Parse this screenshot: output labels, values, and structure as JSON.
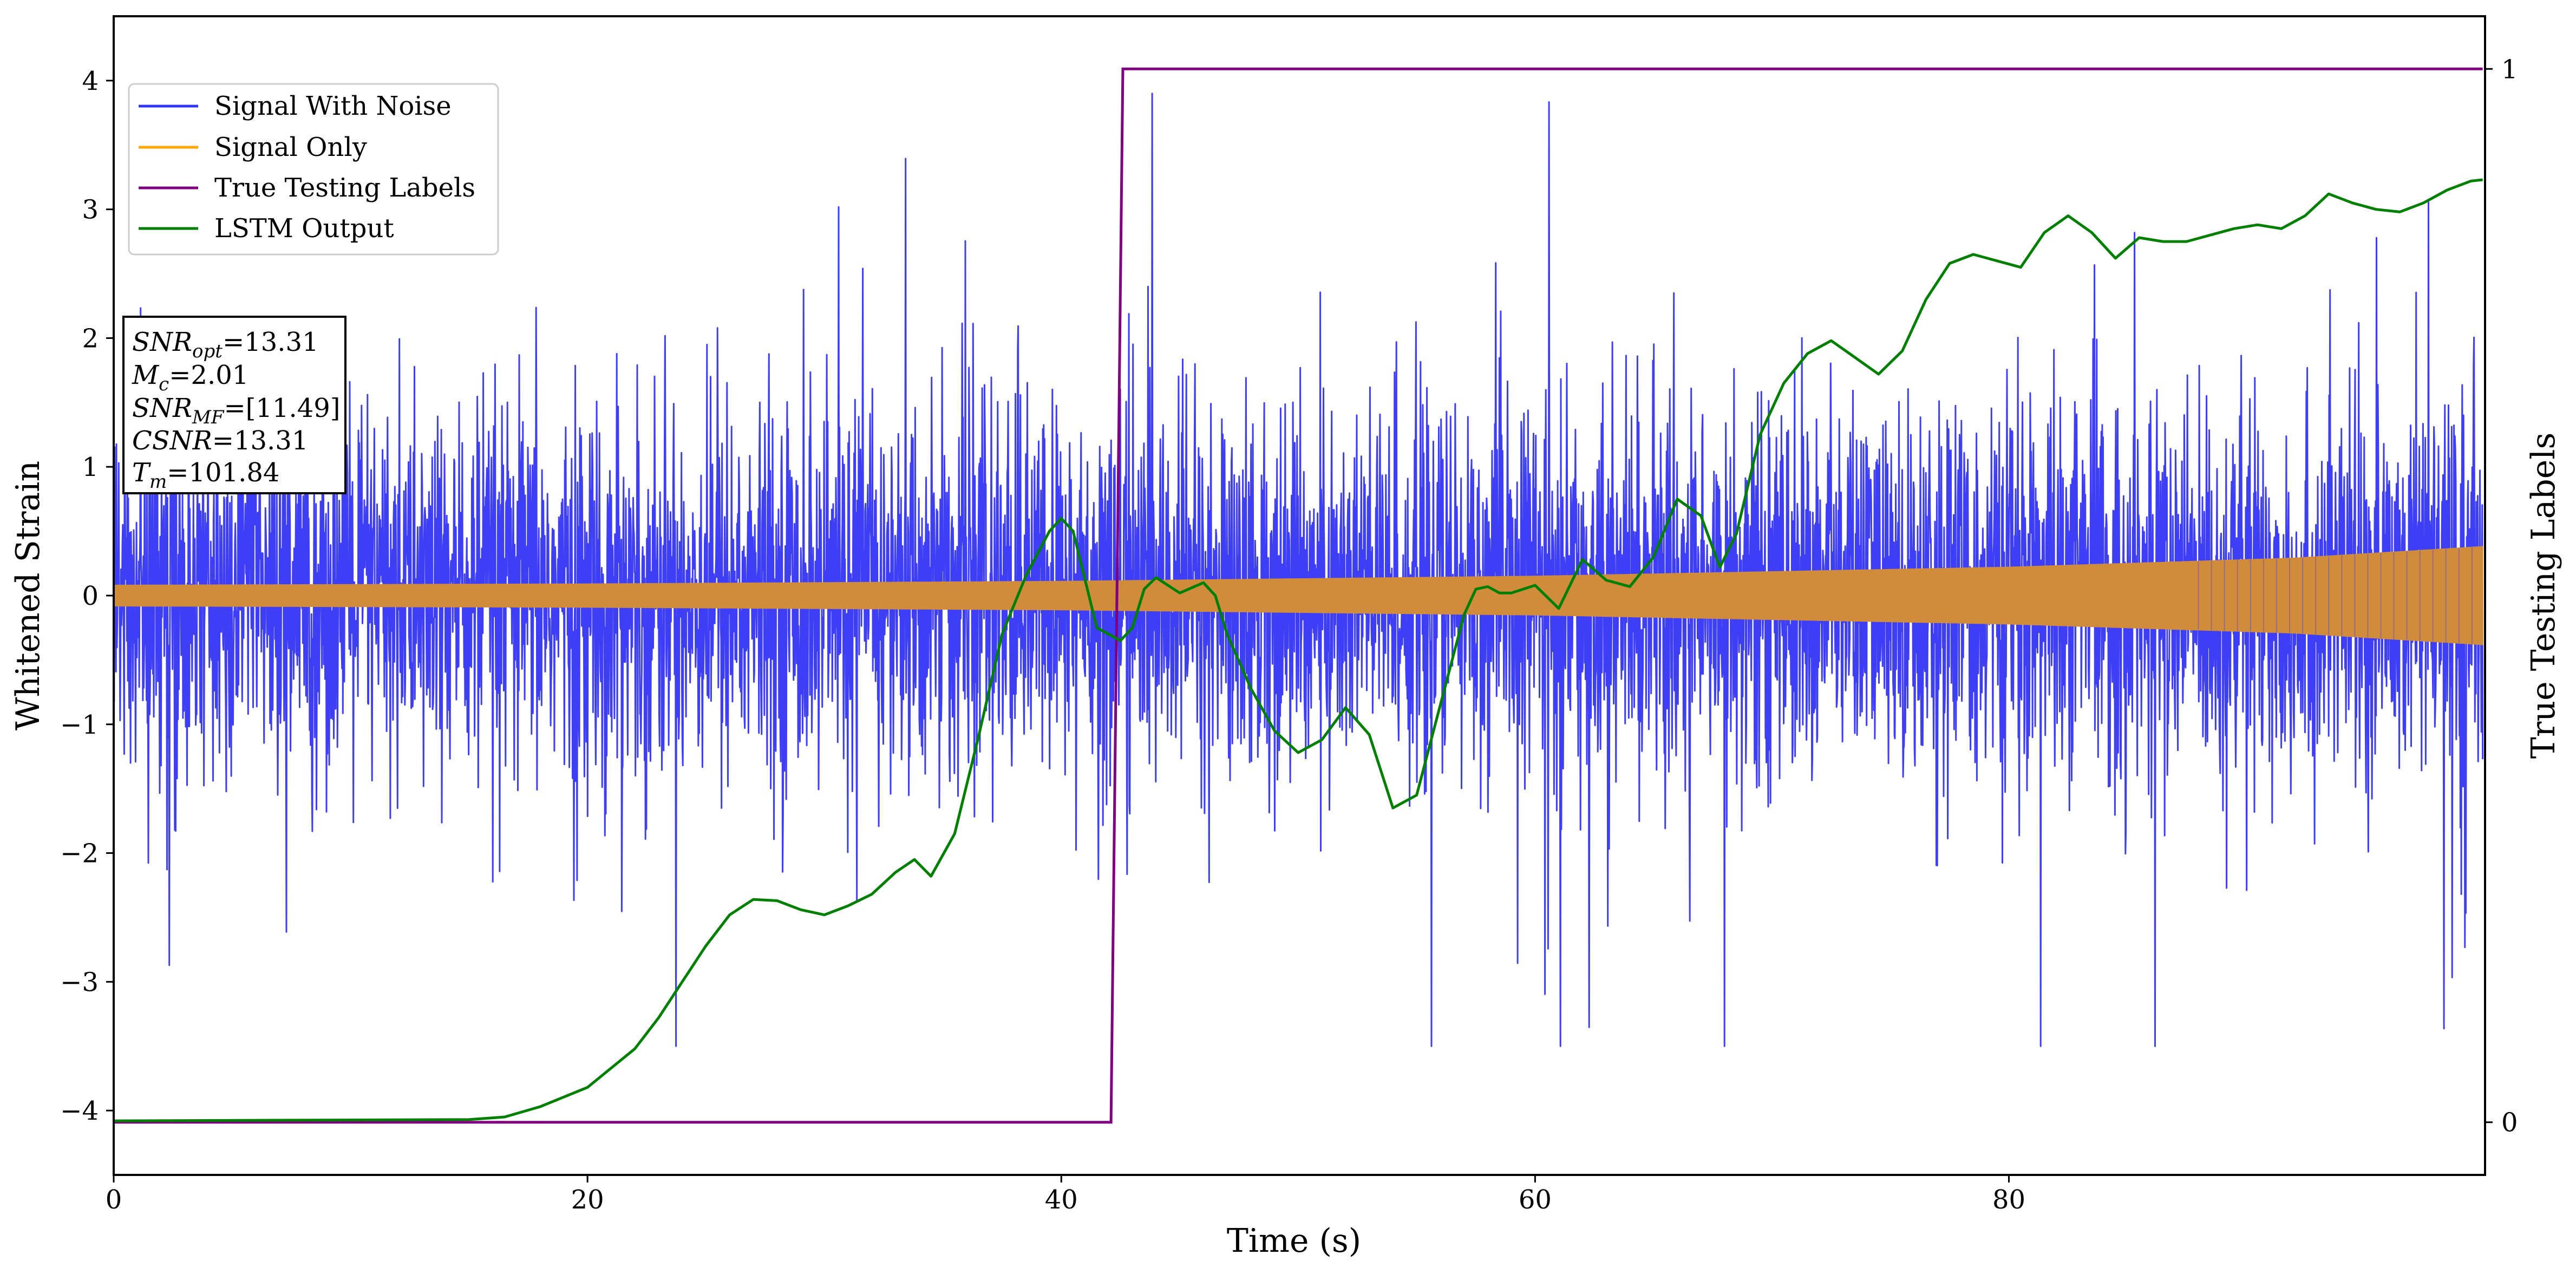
{
  "chart_data": {
    "type": "line",
    "xlabel": "Time (s)",
    "ylabel": "Whitened Strain",
    "y2label": "True Testing Labels",
    "xlim": [
      0,
      100.1
    ],
    "ylim": [
      -4.5,
      4.5
    ],
    "y2lim": [
      -0.05,
      1.05
    ],
    "xticks": [
      0,
      20,
      40,
      60,
      80
    ],
    "yticks": [
      -4,
      -3,
      -2,
      -1,
      0,
      1,
      2,
      3,
      4
    ],
    "y2ticks": [
      0,
      1
    ],
    "grid": false,
    "legend_position": "upper-left",
    "colors": {
      "signal_with_noise": "#3434f5",
      "signal_only": "#ffa500",
      "signal_overlap": "#d08c3b",
      "labels": "#800080",
      "lstm": "#008000"
    },
    "series": [
      {
        "name": "Signal With Noise",
        "kind": "noise_band",
        "axis": "left",
        "typical_amplitude": 1.15,
        "max_value": 4.05,
        "min_value": -3.55
      },
      {
        "name": "Signal Only",
        "kind": "chirp_envelope",
        "axis": "left",
        "envelope_x": [
          0,
          20,
          40,
          60,
          80,
          92,
          100
        ],
        "envelope_amplitude": [
          0.08,
          0.09,
          0.11,
          0.15,
          0.22,
          0.29,
          0.38
        ]
      },
      {
        "name": "True Testing Labels",
        "kind": "step",
        "axis": "right",
        "x": [
          0,
          42.1,
          42.6,
          100
        ],
        "y": [
          0,
          0,
          1,
          1
        ]
      },
      {
        "name": "LSTM Output",
        "kind": "line",
        "axis": "left",
        "x": [
          0,
          15,
          16.5,
          18,
          20,
          22,
          23,
          24,
          25,
          26,
          27,
          28,
          29,
          30,
          31,
          32,
          33,
          33.8,
          34.5,
          35.5,
          36.5,
          37.5,
          38.5,
          39.5,
          40,
          40.5,
          41.5,
          42.5,
          43,
          43.5,
          44,
          44.5,
          45,
          45.5,
          46,
          46.5,
          47,
          48,
          49,
          50,
          51,
          52,
          53,
          54,
          55,
          56,
          57,
          57.5,
          58,
          58.5,
          59,
          60,
          61,
          62,
          63,
          64,
          65,
          66,
          67,
          67.8,
          68.5,
          69.5,
          70.5,
          71.5,
          72.5,
          73.5,
          74.5,
          75.5,
          76.5,
          77.5,
          78.5,
          79.5,
          80.5,
          81.5,
          82.5,
          83.5,
          84.5,
          85.5,
          86.5,
          87.5,
          88.5,
          89.5,
          90.5,
          91.5,
          92.5,
          93.5,
          94.5,
          95.5,
          96.5,
          97.5,
          98.5,
          99.5,
          100
        ],
        "y": [
          -4.08,
          -4.07,
          -4.05,
          -3.97,
          -3.82,
          -3.52,
          -3.28,
          -3.0,
          -2.72,
          -2.48,
          -2.36,
          -2.37,
          -2.44,
          -2.48,
          -2.41,
          -2.32,
          -2.15,
          -2.05,
          -2.18,
          -1.85,
          -1.1,
          -0.3,
          0.15,
          0.5,
          0.6,
          0.5,
          -0.25,
          -0.35,
          -0.25,
          0.05,
          0.14,
          0.08,
          0.02,
          0.06,
          0.1,
          0.0,
          -0.3,
          -0.72,
          -1.05,
          -1.22,
          -1.12,
          -0.87,
          -1.08,
          -1.65,
          -1.55,
          -0.85,
          -0.15,
          0.05,
          0.07,
          0.02,
          0.02,
          0.08,
          -0.1,
          0.28,
          0.12,
          0.07,
          0.3,
          0.75,
          0.62,
          0.22,
          0.48,
          1.25,
          1.65,
          1.88,
          1.98,
          1.85,
          1.72,
          1.9,
          2.3,
          2.58,
          2.65,
          2.6,
          2.55,
          2.82,
          2.95,
          2.82,
          2.62,
          2.78,
          2.75,
          2.75,
          2.8,
          2.85,
          2.88,
          2.85,
          2.95,
          3.12,
          3.05,
          3.0,
          2.98,
          3.05,
          3.15,
          3.22,
          3.23
        ]
      }
    ],
    "annotation_box": {
      "lines": [
        {
          "sym": "SNR",
          "sub": "opt",
          "value": "=13.31"
        },
        {
          "sym": "M",
          "sub": "c",
          "value": "=2.01"
        },
        {
          "sym": "SNR",
          "sub": "MF",
          "value": "=[11.49]"
        },
        {
          "sym": "CSNR",
          "sub": "",
          "value": "=13.31"
        },
        {
          "sym": "T",
          "sub": "m",
          "value": "=101.84"
        }
      ]
    }
  }
}
